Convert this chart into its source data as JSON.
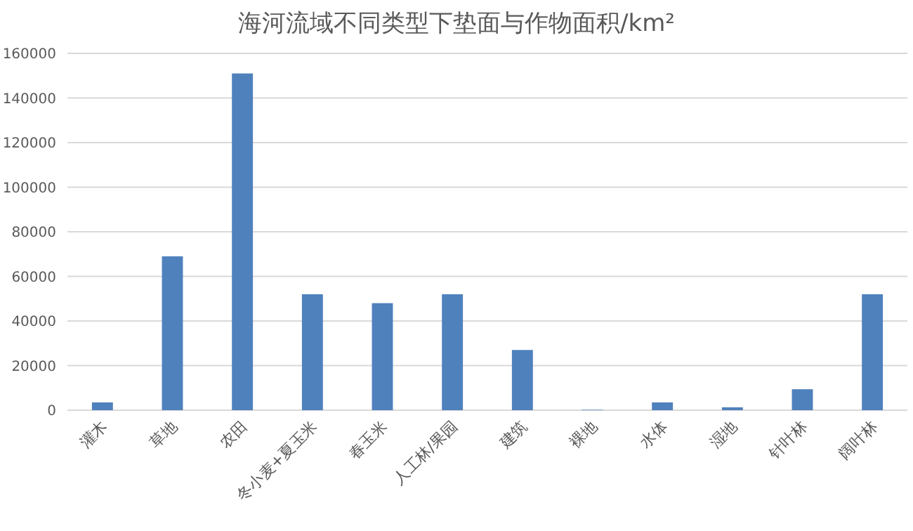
{
  "chart_data": {
    "type": "bar",
    "title": "海河流域不同类型下垫面与作物面积/km²",
    "categories": [
      "灌木",
      "草地",
      "农田",
      "冬小麦+夏玉米",
      "春玉米",
      "人工林/果园",
      "建筑",
      "裸地",
      "水体",
      "湿地",
      "针叶林",
      "阔叶林"
    ],
    "values": [
      3500,
      69000,
      151000,
      52000,
      48000,
      52000,
      27000,
      200,
      3500,
      1300,
      9400,
      52000
    ],
    "color": "#4f81bd",
    "ylim": [
      0,
      160000
    ],
    "yticks": [
      0,
      20000,
      40000,
      60000,
      80000,
      100000,
      120000,
      140000,
      160000
    ],
    "grid": "y"
  }
}
